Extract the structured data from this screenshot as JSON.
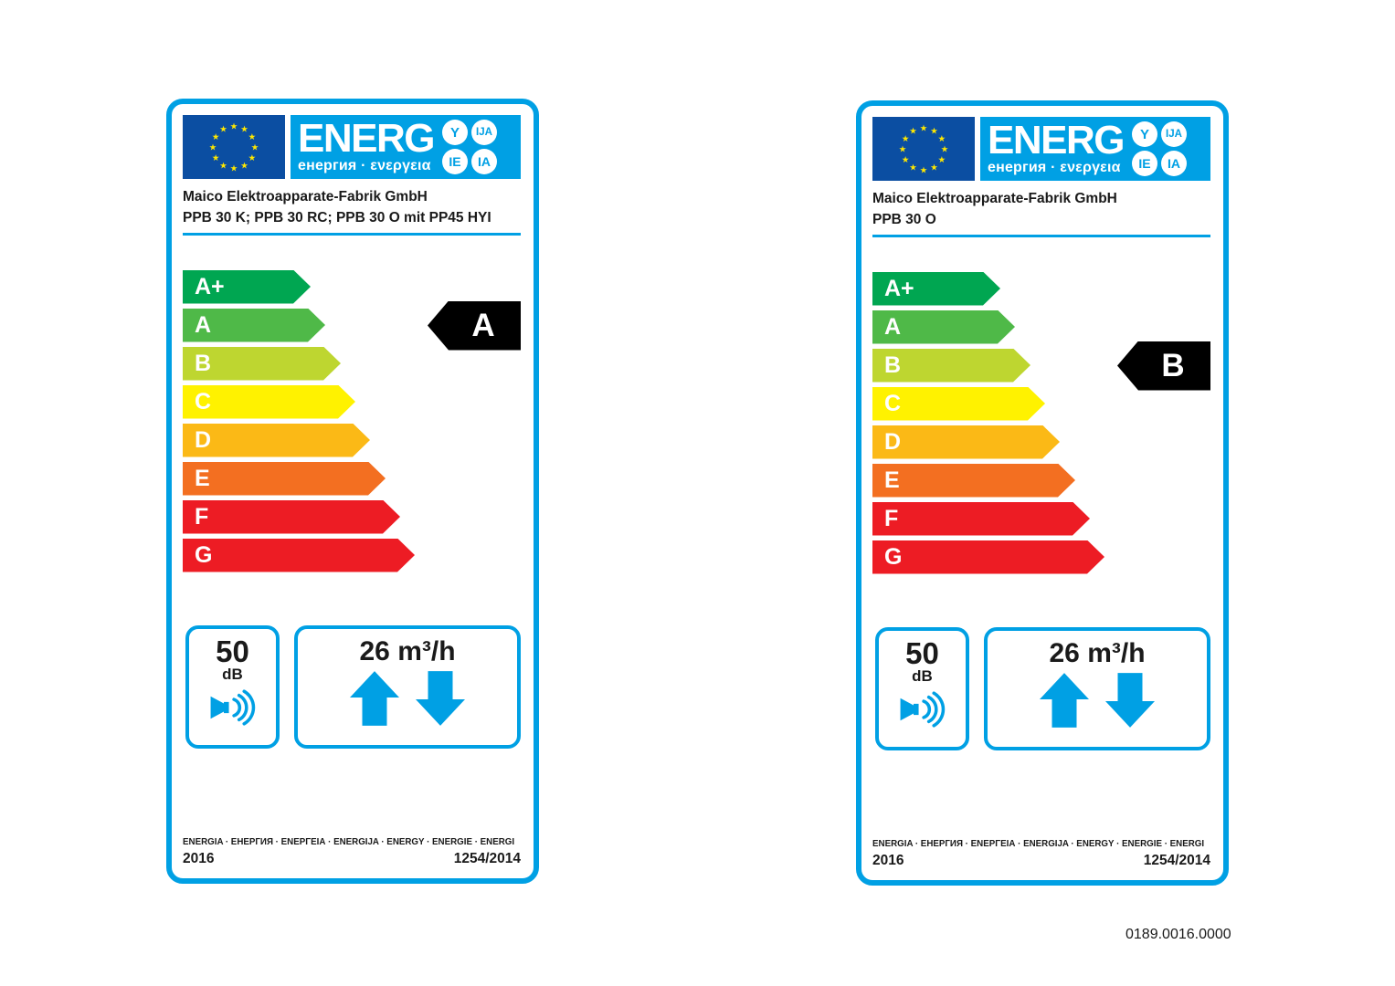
{
  "page": {
    "background": "#FFFFFF",
    "order_code": "0189.0016.0000"
  },
  "colors": {
    "accent_cyan": "#00A0E4",
    "eu_flag_blue": "#0B4EA2",
    "star_yellow": "#FFE800",
    "rating_arrow_black": "#000000",
    "text_black": "#1A1A1A"
  },
  "header": {
    "energ_word": "ENERG",
    "energ_subtitle": "енергия · ενεργεια",
    "suffix_circles": [
      "Y",
      "IJA",
      "IE",
      "IA"
    ]
  },
  "scale": {
    "classes": [
      {
        "label": "A+",
        "color": "#00A651"
      },
      {
        "label": "A",
        "color": "#4FB948"
      },
      {
        "label": "B",
        "color": "#BED630"
      },
      {
        "label": "C",
        "color": "#FFF200"
      },
      {
        "label": "D",
        "color": "#FBB916"
      },
      {
        "label": "E",
        "color": "#F36F21"
      },
      {
        "label": "F",
        "color": "#ED1C24"
      },
      {
        "label": "G",
        "color": "#ED1C24"
      }
    ]
  },
  "labels": [
    {
      "supplier": "Maico Elektroapparate-Fabrik GmbH",
      "model": "PPB 30 K; PPB 30 RC; PPB 30 O mit PP45 HYI",
      "rating": "A",
      "rating_class_index": 1,
      "noise_value": "50",
      "noise_unit": "dB",
      "airflow_value": "26 m³/h",
      "languages_line": "ENERGIA · ЕНЕРГИЯ · ΕΝΕΡΓΕΙΑ · ENERGIJA · ENERGY · ENERGIE · ENERGI",
      "year": "2016",
      "regulation": "1254/2014"
    },
    {
      "supplier": "Maico Elektroapparate-Fabrik GmbH",
      "model": "PPB 30 O",
      "rating": "B",
      "rating_class_index": 2,
      "noise_value": "50",
      "noise_unit": "dB",
      "airflow_value": "26 m³/h",
      "languages_line": "ENERGIA · ЕНЕРГИЯ · ΕΝΕΡΓΕΙΑ · ENERGIJA · ENERGY · ENERGIE · ENERGI",
      "year": "2016",
      "regulation": "1254/2014"
    }
  ],
  "icons": {
    "flag": "eu-flag-icon",
    "noise": "speaker-icon",
    "airflow_up": "up-arrow-icon",
    "airflow_down": "down-arrow-icon",
    "rating": "rating-arrow"
  }
}
